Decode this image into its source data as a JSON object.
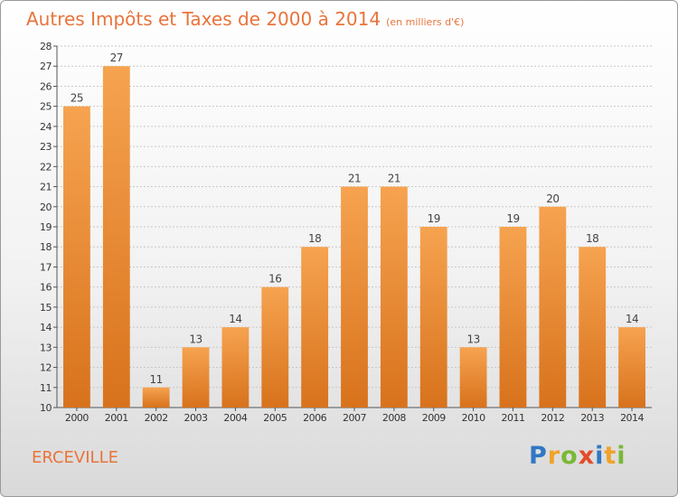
{
  "header": {
    "title": "Autres Impôts et Taxes de 2000 à 2014",
    "subtitle": "(en milliers d'€)"
  },
  "footer": {
    "town": "ERCEVILLE",
    "brand": "Proxiti",
    "brand_letters": [
      {
        "char": "P",
        "color": "#2f77c4"
      },
      {
        "char": "r",
        "color": "#f0a22a"
      },
      {
        "char": "o",
        "color": "#79b837"
      },
      {
        "char": "x",
        "color": "#e34b2a"
      },
      {
        "char": "i",
        "color": "#2f77c4"
      },
      {
        "char": "t",
        "color": "#f0a22a"
      },
      {
        "char": "i",
        "color": "#79b837"
      }
    ]
  },
  "colors": {
    "bar_light": "#f6a350",
    "bar_dark": "#d8721c",
    "title": "#e8743b",
    "grid": "#c8c8c8",
    "axis": "#555555"
  },
  "chart_data": {
    "type": "bar",
    "title": "Autres Impôts et Taxes de 2000 à 2014",
    "subtitle": "(en milliers d'€)",
    "xlabel": "",
    "ylabel": "",
    "categories": [
      "2000",
      "2001",
      "2002",
      "2003",
      "2004",
      "2005",
      "2006",
      "2007",
      "2008",
      "2009",
      "2010",
      "2011",
      "2012",
      "2013",
      "2014"
    ],
    "values": [
      25,
      27,
      11,
      13,
      14,
      16,
      18,
      21,
      21,
      19,
      13,
      19,
      20,
      18,
      14
    ],
    "ylim": [
      10,
      28
    ],
    "yticks": [
      10,
      11,
      12,
      13,
      14,
      15,
      16,
      17,
      18,
      19,
      20,
      21,
      22,
      23,
      24,
      25,
      26,
      27,
      28
    ],
    "grid": true,
    "data_labels": true
  }
}
